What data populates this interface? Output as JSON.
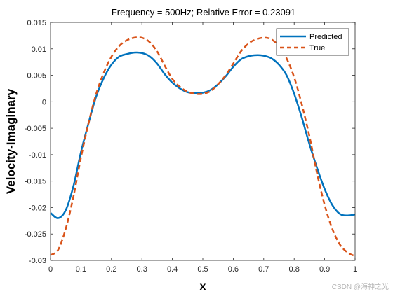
{
  "chart_data": {
    "type": "line",
    "title": "Frequency = 500Hz; Relative Error = 0.23091",
    "xlabel": "x",
    "ylabel": "Velocity-Imaginary",
    "xlim": [
      0,
      1
    ],
    "ylim": [
      -0.03,
      0.015
    ],
    "x_ticks": [
      0,
      0.1,
      0.2,
      0.3,
      0.4,
      0.5,
      0.6,
      0.7,
      0.8,
      0.9,
      1
    ],
    "x_tick_labels": [
      "0",
      "0.1",
      "0.2",
      "0.3",
      "0.4",
      "0.5",
      "0.6",
      "0.7",
      "0.8",
      "0.9",
      "1"
    ],
    "y_ticks": [
      -0.03,
      -0.025,
      -0.02,
      -0.015,
      -0.01,
      -0.005,
      0,
      0.005,
      0.01,
      0.015
    ],
    "y_tick_labels": [
      "-0.03",
      "-0.025",
      "-0.02",
      "-0.015",
      "-0.01",
      "-0.005",
      "0",
      "0.005",
      "0.01",
      "0.015"
    ],
    "grid": false,
    "legend_position": "top-right",
    "x": [
      0,
      0.025,
      0.05,
      0.075,
      0.1,
      0.125,
      0.15,
      0.175,
      0.2,
      0.225,
      0.25,
      0.275,
      0.3,
      0.325,
      0.35,
      0.375,
      0.4,
      0.425,
      0.45,
      0.475,
      0.5,
      0.525,
      0.55,
      0.575,
      0.6,
      0.625,
      0.65,
      0.675,
      0.7,
      0.725,
      0.75,
      0.775,
      0.8,
      0.825,
      0.85,
      0.875,
      0.9,
      0.925,
      0.95,
      0.975,
      1
    ],
    "series": [
      {
        "name": "Predicted",
        "color": "#0072BD",
        "style": "solid",
        "values": [
          -0.021,
          -0.022,
          -0.0205,
          -0.016,
          -0.0095,
          -0.004,
          0.001,
          0.0045,
          0.007,
          0.0085,
          0.009,
          0.0093,
          0.0092,
          0.0086,
          0.0072,
          0.0052,
          0.0036,
          0.0025,
          0.0018,
          0.0016,
          0.0017,
          0.0022,
          0.0033,
          0.0048,
          0.0066,
          0.008,
          0.0086,
          0.0088,
          0.0087,
          0.0082,
          0.007,
          0.005,
          0.0015,
          -0.003,
          -0.008,
          -0.0125,
          -0.0165,
          -0.0195,
          -0.0212,
          -0.0215,
          -0.0213
        ]
      },
      {
        "name": "True",
        "color": "#D95319",
        "style": "dashed",
        "values": [
          -0.029,
          -0.028,
          -0.024,
          -0.018,
          -0.0105,
          -0.004,
          0.0015,
          0.0055,
          0.0085,
          0.0105,
          0.0116,
          0.0121,
          0.0121,
          0.0113,
          0.0095,
          0.0068,
          0.0043,
          0.0028,
          0.0019,
          0.0015,
          0.0015,
          0.002,
          0.0033,
          0.005,
          0.0072,
          0.0095,
          0.011,
          0.0118,
          0.0121,
          0.0118,
          0.0105,
          0.0082,
          0.0046,
          -0.0005,
          -0.0065,
          -0.0135,
          -0.0195,
          -0.024,
          -0.027,
          -0.0285,
          -0.0292
        ]
      }
    ]
  },
  "watermark": "CSDN @海神之光"
}
